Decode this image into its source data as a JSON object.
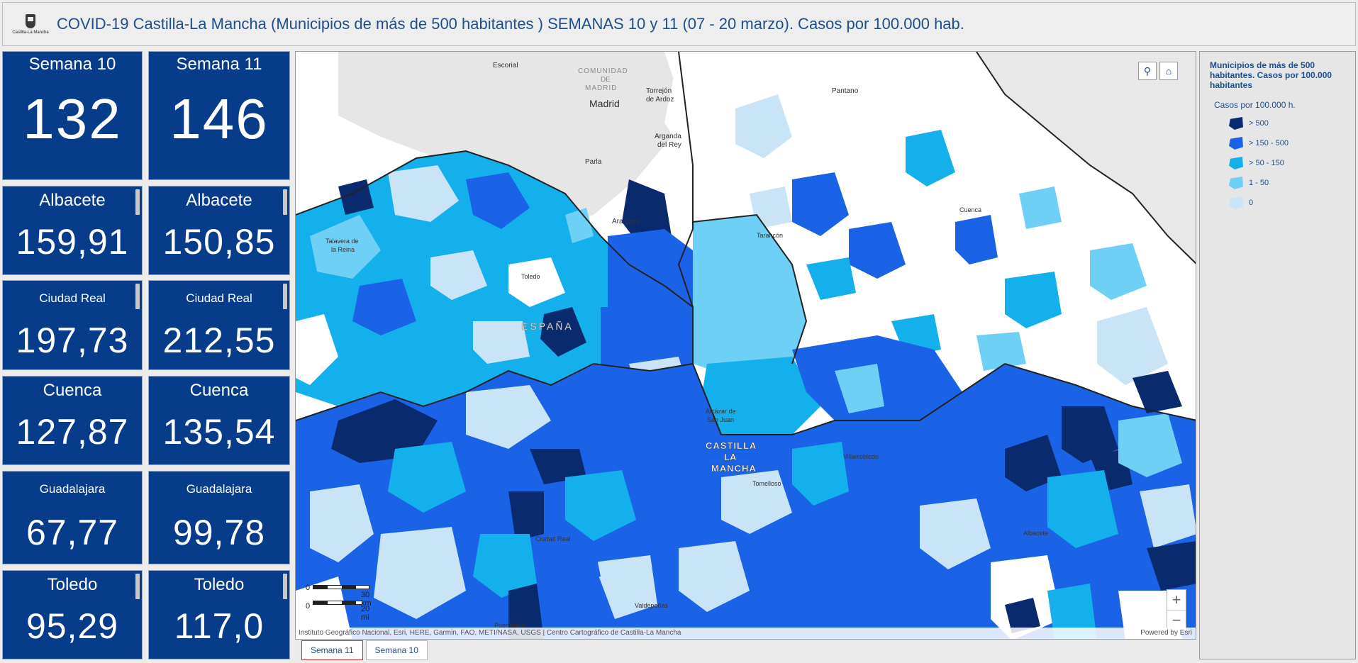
{
  "header": {
    "logo_text": "Castilla-La Mancha",
    "title": "COVID-19 Castilla-La Mancha (Municipios de más de 500 habitantes ) SEMANAS 10 y 11 (07 - 20 marzo). Casos por 100.000 hab."
  },
  "tiles": {
    "semana10": {
      "label": "Semana 10",
      "value": "132"
    },
    "semana11": {
      "label": "Semana 11",
      "value": "146"
    },
    "albacete10": {
      "label": "Albacete",
      "value": "159,91"
    },
    "albacete11": {
      "label": "Albacete",
      "value": "150,85"
    },
    "ciudadreal10": {
      "label": "Ciudad Real",
      "value": "197,73"
    },
    "ciudadreal11": {
      "label": "Ciudad Real",
      "value": "212,55"
    },
    "cuenca10": {
      "label": "Cuenca",
      "value": "127,87"
    },
    "cuenca11": {
      "label": "Cuenca",
      "value": "135,54"
    },
    "guadalajara10": {
      "label": "Guadalajara",
      "value": "67,77"
    },
    "guadalajara11": {
      "label": "Guadalajara",
      "value": "99,78"
    },
    "toledo10": {
      "label": "Toledo",
      "value": "95,29"
    },
    "toledo11": {
      "label": "Toledo",
      "value": "117,0"
    }
  },
  "map": {
    "labels": {
      "escorial": "Escorial",
      "comunidad": "COMUNIDAD",
      "de": "DE",
      "madrid_region": "MADRID",
      "madrid": "Madrid",
      "torrejon": "Torrejón",
      "ardoz": "de Ardoz",
      "arganda": "Arganda",
      "rey": "del Rey",
      "parla": "Parla",
      "pantano": "Pantano",
      "aranjuez": "Aranjuez",
      "tarancon": "Tarancón",
      "cuenca": "Cuenca",
      "talavera": "Talavera de",
      "lareina": "la Reina",
      "toledo": "Toledo",
      "espana": "ESPAÑA",
      "alcazar": "Alcázar de",
      "sanjuan": "San Juan",
      "castilla": "CASTILLA",
      "la": "LA",
      "mancha": "MANCHA",
      "tomelloso": "Tomelloso",
      "villarrobledo": "Villarrobledo",
      "albacete": "Albacete",
      "ciudadreal": "Ciudad Real",
      "valdepenas": "Valdepeñas",
      "puertollano": "Puertollano"
    },
    "scale": {
      "km": "30 km",
      "mi": "20 mi",
      "zero": "0"
    },
    "attribution": "Instituto Geográfico Nacional, Esri, HERE, Garmin, FAO, METI/NASA, USGS | Centro Cartográfico de Castilla-La Mancha",
    "powered": "Powered by Esri",
    "zoom_in": "+",
    "zoom_out": "−"
  },
  "tabs": {
    "semana11": "Semana 11",
    "semana10": "Semana 10"
  },
  "legend": {
    "title": "Municipios de más de 500 habitantes. Casos por 100.000 habitantes",
    "subtitle": "Casos por 100.000 h.",
    "items": [
      {
        "label": "> 500",
        "color": "#0a2a6e"
      },
      {
        "label": "> 150 - 500",
        "color": "#1b63e6"
      },
      {
        "label": "> 50 - 150",
        "color": "#13b0ec"
      },
      {
        "label": "1 - 50",
        "color": "#6fd0f5"
      },
      {
        "label": "0",
        "color": "#c8e4f6"
      }
    ]
  }
}
